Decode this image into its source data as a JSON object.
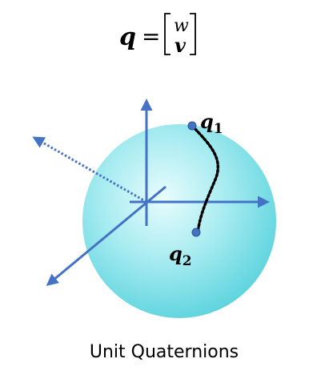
{
  "formula": {
    "lhs": "q",
    "equals": "=",
    "vector_top": "w",
    "vector_bottom": "v"
  },
  "points": [
    {
      "label": "q",
      "subscript": "1"
    },
    {
      "label": "q",
      "subscript": "2"
    }
  ],
  "caption": "Unit Quaternions",
  "colors": {
    "axis": "#4472c4",
    "sphere_center": "#e6fbfc",
    "sphere_edge": "#5fd6e0",
    "path": "#000000",
    "text": "#000000"
  }
}
